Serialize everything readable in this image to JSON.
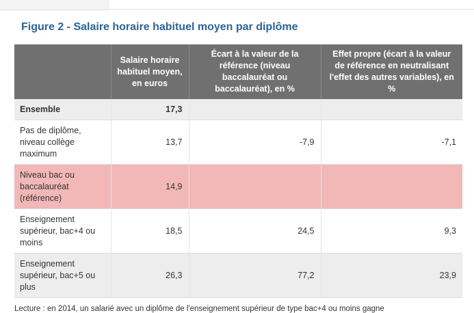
{
  "title": "Figure 2 - Salaire horaire habituel moyen par diplôme",
  "table": {
    "headers": [
      "",
      "Salaire horaire habituel moyen, en euros",
      "Écart à la valeur de la référence (niveau baccalauréat ou baccalauréat), en %",
      "Effet propre (écart à la valeur de référence en neutralisant l'effet des autres variables), en %"
    ],
    "rows": [
      {
        "label": "Ensemble",
        "salaire": "17,3",
        "ecart": "",
        "effet": ""
      },
      {
        "label": "Pas de diplôme, niveau collège maximum",
        "salaire": "13,7",
        "ecart": "-7,9",
        "effet": "-7,1"
      },
      {
        "label": "Niveau bac ou baccalauréat (référence)",
        "salaire": "14,9",
        "ecart": "",
        "effet": ""
      },
      {
        "label": "Enseignement supérieur, bac+4 ou moins",
        "salaire": "18,5",
        "ecart": "24,5",
        "effet": "9,3"
      },
      {
        "label": "Enseignement supérieur, bac+5 ou plus",
        "salaire": "26,3",
        "ecart": "77,2",
        "effet": "23,9"
      }
    ]
  },
  "footnote": "Lecture : en 2014, un salarié avec un diplôme de l'enseignement supérieur de type bac+4 ou moins gagne"
}
